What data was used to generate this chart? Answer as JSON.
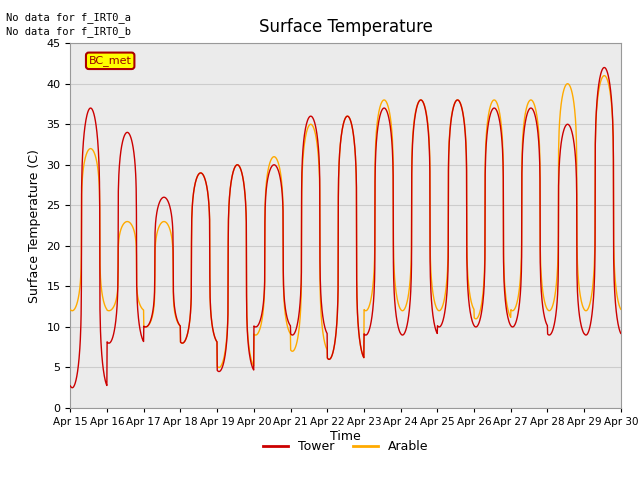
{
  "title": "Surface Temperature",
  "xlabel": "Time",
  "ylabel": "Surface Temperature (C)",
  "ylim": [
    0,
    45
  ],
  "annotation_text": "No data for f_IRT0_a\nNo data for f_IRT0_b",
  "legend_labels": [
    "Tower",
    "Arable"
  ],
  "bc_met_label": "BC_met",
  "bc_met_color": "#ffff00",
  "bc_met_border": "#aa0000",
  "x_tick_labels": [
    "Apr 15",
    "Apr 16",
    "Apr 17",
    "Apr 18",
    "Apr 19",
    "Apr 20",
    "Apr 21",
    "Apr 22",
    "Apr 23",
    "Apr 24",
    "Apr 25",
    "Apr 26",
    "Apr 27",
    "Apr 28",
    "Apr 29",
    "Apr 30"
  ],
  "grid_color": "#cccccc",
  "plot_bg": "#ebebeb",
  "tower_color": "#cc0000",
  "arable_color": "#ffaa00",
  "line_width": 1.0,
  "daily_peaks_tower": [
    37,
    34,
    26,
    29,
    30,
    30,
    36,
    36,
    37,
    38,
    38,
    37,
    37,
    35,
    42
  ],
  "daily_troughs_tower": [
    2.5,
    8,
    10,
    8,
    4.5,
    10,
    9,
    6,
    9,
    9,
    10,
    10,
    10,
    9,
    9
  ],
  "daily_peaks_arable": [
    32,
    23,
    23,
    29,
    30,
    31,
    35,
    36,
    38,
    38,
    38,
    38,
    38,
    40,
    41
  ],
  "daily_troughs_arable": [
    12,
    12,
    10,
    8,
    5,
    9,
    7,
    6,
    12,
    12,
    12,
    11,
    12,
    12,
    12
  ],
  "peak_sharpness": 4.0
}
